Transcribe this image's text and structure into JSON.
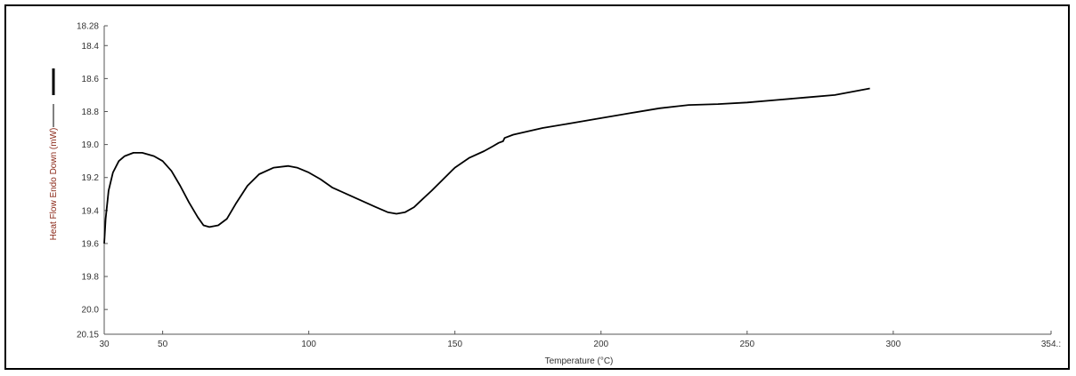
{
  "chart_data": {
    "type": "line",
    "xlabel": "Temperature (°C)",
    "ylabel": "Heat Flow Endo Down (mW)",
    "xlim": [
      30,
      354
    ],
    "ylim": [
      18.28,
      20.15
    ],
    "y_inverted": true,
    "x_ticks": [
      30,
      50,
      100,
      150,
      200,
      250,
      300,
      354
    ],
    "x_tick_labels": [
      "30",
      "50",
      "100",
      "150",
      "200",
      "250",
      "300",
      "354.:"
    ],
    "y_ticks": [
      18.28,
      18.4,
      18.6,
      18.8,
      19.0,
      19.2,
      19.4,
      19.6,
      19.8,
      20.0,
      20.15
    ],
    "y_tick_labels": [
      "18.28",
      "18.4",
      "18.6",
      "18.8",
      "19.0",
      "19.2",
      "19.4",
      "19.6",
      "19.8",
      "20.0",
      "20.15"
    ],
    "grid": false,
    "series": [
      {
        "color": "#000000",
        "x": [
          30,
          30.5,
          31.5,
          33,
          35,
          37,
          40,
          43,
          47,
          50,
          53,
          56,
          59,
          62,
          64,
          66,
          69,
          72,
          75,
          79,
          83,
          88,
          93,
          96,
          100,
          104,
          108,
          113,
          118,
          123,
          127,
          130,
          133,
          136,
          139,
          142,
          146,
          150,
          155,
          160,
          163,
          165,
          166.5,
          167,
          170,
          175,
          180,
          190,
          200,
          210,
          220,
          230,
          240,
          250,
          260,
          270,
          280,
          292
        ],
        "y": [
          19.6,
          19.45,
          19.28,
          19.17,
          19.1,
          19.07,
          19.05,
          19.05,
          19.07,
          19.1,
          19.16,
          19.25,
          19.35,
          19.44,
          19.49,
          19.5,
          19.49,
          19.45,
          19.36,
          19.25,
          19.18,
          19.14,
          19.13,
          19.14,
          19.17,
          19.21,
          19.26,
          19.3,
          19.34,
          19.38,
          19.41,
          19.42,
          19.41,
          19.38,
          19.33,
          19.28,
          19.21,
          19.14,
          19.08,
          19.04,
          19.01,
          18.99,
          18.98,
          18.96,
          18.94,
          18.92,
          18.9,
          18.87,
          18.84,
          18.81,
          18.78,
          18.76,
          18.755,
          18.745,
          18.73,
          18.715,
          18.7,
          18.66
        ]
      }
    ]
  }
}
